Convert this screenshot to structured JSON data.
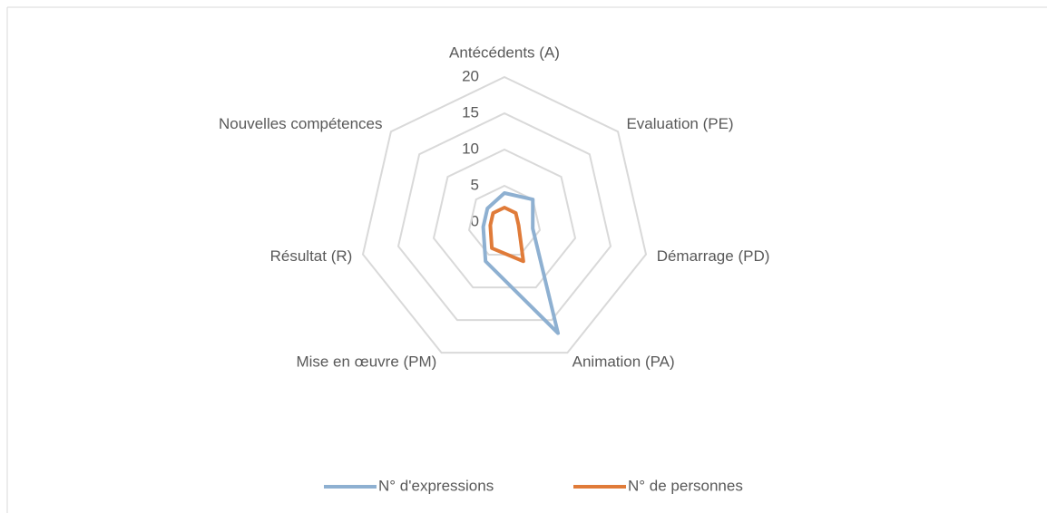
{
  "chart_data": {
    "type": "radar",
    "categories": [
      "Antécédents (A)",
      "Evaluation (PE)",
      "Démarrage (PD)",
      "Animation (PA)",
      "Mise en œuvre (PM)",
      "Résultat (R)",
      "Nouvelles compétences"
    ],
    "series": [
      {
        "name": "N° d'expressions",
        "color": "#8eb0d1",
        "values": [
          4,
          5,
          4,
          17,
          6,
          3,
          3
        ]
      },
      {
        "name": "N° de personnes",
        "color": "#e07b39",
        "values": [
          2,
          2,
          2,
          6,
          4,
          2,
          2
        ]
      }
    ],
    "ylim": [
      0,
      20
    ],
    "yticks": [
      0,
      5,
      10,
      15,
      20
    ],
    "grid": true,
    "legend": "bottom"
  }
}
